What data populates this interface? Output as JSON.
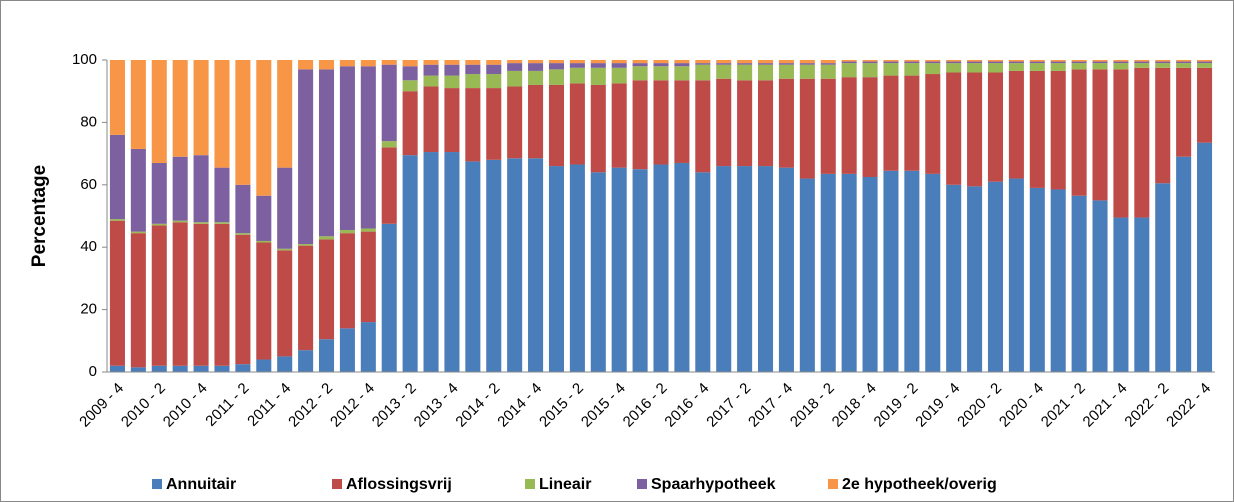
{
  "chart_data": {
    "type": "stacked_bar",
    "y_label": "Percentage",
    "categories": [
      "2009 - 4",
      null,
      "2010 - 2",
      null,
      "2010 - 4",
      null,
      "2011 - 2",
      null,
      "2011 - 4",
      null,
      "2012 - 2",
      null,
      "2012 - 4",
      null,
      "2013 - 2",
      null,
      "2013 - 4",
      null,
      "2014 - 2",
      null,
      "2014 - 4",
      null,
      "2015 - 2",
      null,
      "2015 - 4",
      null,
      "2016 - 2",
      null,
      "2016 - 4",
      null,
      "2017 - 2",
      null,
      "2017 - 4",
      null,
      "2018 - 2",
      null,
      "2018 - 4",
      null,
      "2019 - 2",
      null,
      "2019 - 4",
      null,
      "2020 - 2",
      null,
      "2020 - 4",
      null,
      "2021 - 2",
      null,
      "2021 - 4",
      null,
      "2022 - 2",
      null,
      "2022 - 4"
    ],
    "series": [
      {
        "name": "Annuitair",
        "color": "#4a7ebb",
        "values": [
          2,
          1.5,
          2,
          2,
          2,
          2,
          2.5,
          4,
          5,
          7,
          10.5,
          14,
          16,
          47.5,
          69.5,
          70.5,
          70.5,
          67.5,
          68,
          68.5,
          68.5,
          66,
          66.5,
          64,
          65.5,
          65,
          66.5,
          67,
          64,
          66,
          66,
          66,
          65.5,
          62,
          63.5,
          63.5,
          62.5,
          64.5,
          64.5,
          63.5,
          60,
          59.5,
          61,
          62,
          59,
          58.5,
          56.5,
          55,
          49.5,
          49.5,
          60.5,
          69,
          73.5
        ]
      },
      {
        "name": "Aflossingsvrij",
        "color": "#be4b48",
        "values": [
          46.5,
          43,
          45,
          46,
          45.5,
          45.5,
          41.5,
          37.5,
          34,
          33.5,
          32,
          30.5,
          29,
          24.5,
          20.5,
          21,
          20.5,
          23.5,
          23,
          23,
          23.5,
          26,
          26,
          28,
          27,
          28.5,
          27,
          26.5,
          29.5,
          28,
          27.5,
          27.5,
          28.5,
          32,
          30.5,
          31,
          32,
          30.5,
          30.5,
          32,
          36,
          36.5,
          35,
          34.5,
          37.5,
          38,
          40.5,
          42,
          47.5,
          48,
          37,
          28.5,
          24
        ]
      },
      {
        "name": "Lineair",
        "color": "#98b954",
        "values": [
          0.5,
          0.5,
          0.5,
          0.5,
          0.5,
          0.5,
          0.5,
          0.5,
          0.5,
          0.5,
          1,
          1,
          1,
          2,
          3.5,
          3.5,
          4,
          4.5,
          4.5,
          5,
          4.5,
          5,
          5,
          5.5,
          5,
          4.5,
          4.5,
          4.5,
          5,
          4.5,
          5,
          5,
          4.5,
          4.5,
          4.5,
          4.5,
          4.5,
          4,
          4,
          3.5,
          3,
          3,
          3,
          2.5,
          2.5,
          2.5,
          2,
          2,
          2,
          1.5,
          1.5,
          1.5,
          1.5
        ]
      },
      {
        "name": "Spaarhypotheek",
        "color": "#7d60a0",
        "values": [
          27,
          26.5,
          19.5,
          20.5,
          21.5,
          17.5,
          15.5,
          14.5,
          26,
          56,
          53.5,
          52.5,
          52,
          24.5,
          4.5,
          3.5,
          3.5,
          3,
          3,
          2.5,
          2.5,
          2,
          1.5,
          1.5,
          1.5,
          1,
          1,
          1,
          0.5,
          0.5,
          0.5,
          0.5,
          0.5,
          0.5,
          0.5,
          0.5,
          0.5,
          0.5,
          0.5,
          0.5,
          0.5,
          0.5,
          0.5,
          0.5,
          0.5,
          0.5,
          0.5,
          0.5,
          0.5,
          0.5,
          0.5,
          0.5,
          0.5
        ]
      },
      {
        "name": "2e hypotheek/overig",
        "color": "#f79646",
        "values": [
          24,
          28.5,
          33,
          31,
          30.5,
          34.5,
          40,
          43.5,
          34.5,
          3,
          3,
          2,
          2,
          1.5,
          2,
          1.5,
          1.5,
          1.5,
          1.5,
          1,
          1,
          1,
          1,
          1,
          1,
          1,
          1,
          1,
          1,
          1,
          1,
          1,
          1,
          1,
          1,
          0.5,
          0.5,
          0.5,
          0.5,
          0.5,
          0.5,
          0.5,
          0.5,
          0.5,
          0.5,
          0.5,
          0.5,
          0.5,
          0.5,
          0.5,
          0.5,
          0.5,
          0.5
        ]
      }
    ],
    "ylim": [
      0,
      100
    ],
    "yticks": [
      0,
      20,
      40,
      60,
      80,
      100
    ],
    "grid": false,
    "legend": "bottom"
  }
}
